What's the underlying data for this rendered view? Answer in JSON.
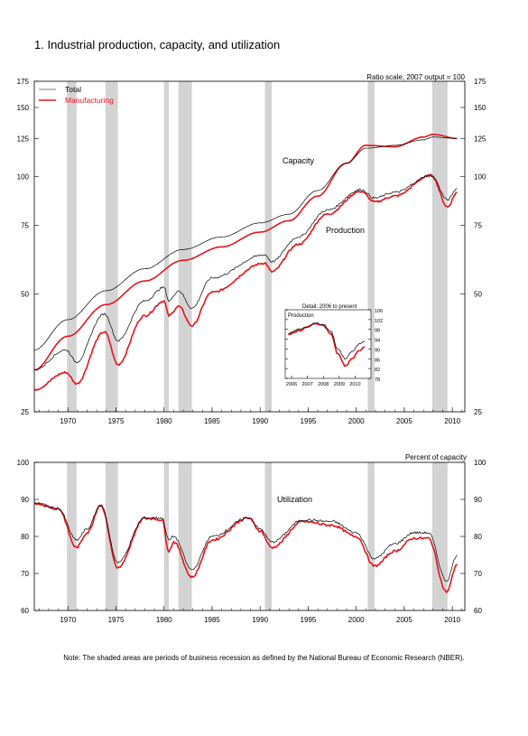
{
  "figure": {
    "title": "1.  Industrial production, capacity, and utilization",
    "note": "Note: The shaded areas are periods of business recession as defined by the National Bureau of Economic Research (NBER)."
  },
  "colors": {
    "total": "#000000",
    "manufacturing": "#e8141a",
    "recession": "#d3d3d3"
  },
  "chart_data": [
    {
      "type": "line",
      "scale": "log",
      "annotation": "Ratio scale, 2007 output = 100",
      "ylim": [
        25,
        175
      ],
      "yticks": [
        25,
        50,
        75,
        100,
        125,
        150,
        175
      ],
      "xlim": [
        1966.5,
        2011.3
      ],
      "xticks": [
        1970,
        1975,
        1980,
        1985,
        1990,
        1995,
        2000,
        2005,
        2010
      ],
      "legend": {
        "placement": "top-left",
        "entries": [
          "Total",
          "Manufacturing"
        ]
      },
      "labels": {
        "capacity": "Capacity",
        "production": "Production"
      },
      "recessions": [
        [
          1969.9,
          1970.9
        ],
        [
          1973.9,
          1975.2
        ],
        [
          1980.0,
          1980.5
        ],
        [
          1981.5,
          1982.9
        ],
        [
          1990.5,
          1991.2
        ],
        [
          2001.2,
          2001.9
        ],
        [
          2007.9,
          2009.5
        ]
      ],
      "series": [
        {
          "name": "Total",
          "role": "capacity",
          "x": [
            1966.5,
            1970,
            1974,
            1978,
            1982,
            1986,
            1990,
            1993,
            1996,
            1999,
            2001,
            2004,
            2007,
            2008,
            2010.5
          ],
          "y": [
            36,
            43,
            51,
            58,
            65,
            70,
            76,
            80,
            92,
            108,
            118,
            120,
            124,
            126,
            125
          ]
        },
        {
          "name": "Manufacturing",
          "role": "capacity",
          "x": [
            1966.5,
            1970,
            1974,
            1978,
            1982,
            1986,
            1990,
            1993,
            1996,
            1999,
            2001,
            2004,
            2007,
            2008,
            2010.5
          ],
          "y": [
            32,
            39,
            47,
            54,
            61,
            66,
            72,
            77,
            89,
            108,
            120,
            119,
            126,
            128,
            125
          ]
        },
        {
          "name": "Total",
          "role": "production",
          "x": [
            1966.5,
            1969.8,
            1970.9,
            1973.8,
            1975.2,
            1978,
            1980.0,
            1980.5,
            1981.5,
            1982.9,
            1985,
            1990.5,
            1991.2,
            1994,
            1997,
            2000.5,
            2001.9,
            2004,
            2007.8,
            2009.5,
            2010.5
          ],
          "y": [
            32,
            36,
            33.5,
            44.5,
            38,
            48,
            52,
            48,
            51,
            46,
            55,
            63,
            60.5,
            70,
            82,
            92.5,
            88,
            91,
            100.5,
            87,
            93
          ]
        },
        {
          "name": "Manufacturing",
          "role": "production",
          "x": [
            1966.5,
            1969.8,
            1970.9,
            1973.8,
            1975.2,
            1978,
            1980.0,
            1980.5,
            1981.5,
            1982.9,
            1985,
            1990.5,
            1991.2,
            1994,
            1997,
            2000.5,
            2001.9,
            2004,
            2007.8,
            2009.5,
            2010.5
          ],
          "y": [
            28.5,
            31.5,
            29.5,
            40,
            33,
            44,
            48,
            44,
            46.5,
            41.5,
            50.5,
            60,
            57,
            67,
            80,
            91.5,
            86,
            89,
            100.5,
            83.5,
            91
          ]
        }
      ]
    },
    {
      "type": "line",
      "title": "Detail: 2006 to present",
      "ylabel": "Production",
      "ylim": [
        78,
        106
      ],
      "yticks": [
        78,
        82,
        86,
        90,
        94,
        98,
        102,
        106
      ],
      "xlim": [
        2005.6,
        2011.0
      ],
      "xticks": [
        2006,
        2007,
        2008,
        2009,
        2010
      ],
      "series": [
        {
          "name": "Total",
          "x": [
            2005.8,
            2006.5,
            2007.0,
            2007.5,
            2008.0,
            2008.5,
            2008.9,
            2009.4,
            2009.8,
            2010.3,
            2010.6
          ],
          "y": [
            96.5,
            98,
            99,
            100.5,
            100,
            97,
            90,
            86,
            89,
            92,
            93
          ]
        },
        {
          "name": "Manufacturing",
          "x": [
            2005.8,
            2006.5,
            2007.0,
            2007.5,
            2008.0,
            2008.5,
            2008.9,
            2009.4,
            2009.8,
            2010.3,
            2010.6
          ],
          "y": [
            96,
            97.5,
            99,
            100.5,
            99.5,
            96,
            88,
            83,
            86,
            89.5,
            91
          ]
        }
      ]
    },
    {
      "type": "line",
      "annotation": "Percent of capacity",
      "label": "Utilization",
      "ylim": [
        60,
        100
      ],
      "yticks": [
        60,
        70,
        80,
        90,
        100
      ],
      "xlim": [
        1966.5,
        2011.3
      ],
      "xticks": [
        1970,
        1975,
        1980,
        1985,
        1990,
        1995,
        2000,
        2005,
        2010
      ],
      "recessions": [
        [
          1969.9,
          1970.9
        ],
        [
          1973.9,
          1975.2
        ],
        [
          1980.0,
          1980.5
        ],
        [
          1981.5,
          1982.9
        ],
        [
          1990.5,
          1991.2
        ],
        [
          2001.2,
          2001.9
        ],
        [
          2007.9,
          2009.5
        ]
      ],
      "series": [
        {
          "name": "Total",
          "x": [
            1966.5,
            1969,
            1970.9,
            1972,
            1973.4,
            1975.2,
            1978,
            1979.8,
            1980.5,
            1981,
            1982.9,
            1985,
            1988.8,
            1990,
            1991.2,
            1994.5,
            1997.5,
            2000,
            2001.9,
            2004,
            2006,
            2007.5,
            2009.4,
            2010.5
          ],
          "y": [
            89,
            87.5,
            79,
            82,
            88.5,
            73,
            85,
            85,
            79,
            80,
            71,
            80,
            85,
            82,
            78.5,
            84.5,
            84,
            81,
            74,
            78,
            81,
            81,
            68,
            75
          ]
        },
        {
          "name": "Manufacturing",
          "x": [
            1966.5,
            1969,
            1970.9,
            1972,
            1973.4,
            1975.2,
            1978,
            1979.8,
            1980.5,
            1981,
            1982.9,
            1985,
            1988.8,
            1990,
            1991.2,
            1994.5,
            1997.5,
            2000,
            2001.9,
            2004,
            2006,
            2007.5,
            2009.4,
            2010.5
          ],
          "y": [
            89,
            87.5,
            77,
            81,
            88.5,
            71.5,
            85,
            84.5,
            76,
            78.5,
            69,
            79,
            85,
            81.5,
            77,
            84,
            83,
            80,
            72,
            76,
            79.5,
            79.5,
            65,
            72.5
          ]
        }
      ]
    }
  ]
}
